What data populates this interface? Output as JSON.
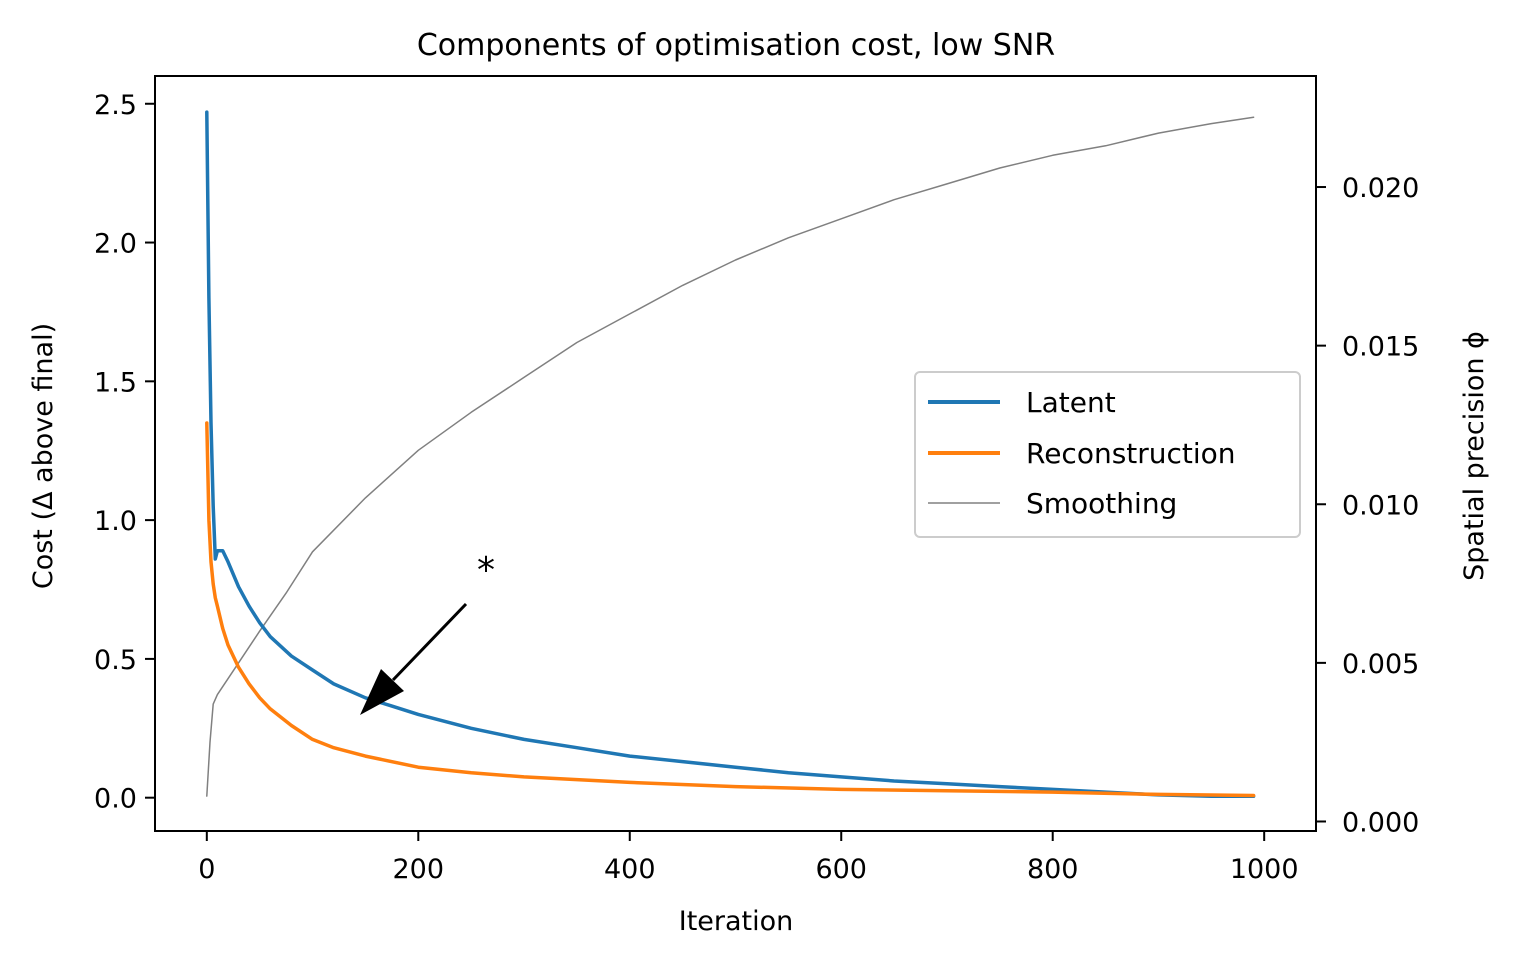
{
  "chart_data": {
    "type": "line",
    "title": "Components of optimisation cost, low SNR",
    "xlabel": "Iteration",
    "ylabel": "Cost (Δ above final)",
    "y2label": "Spatial precision ϕ",
    "xlim": [
      -49,
      1049
    ],
    "ylim": [
      -0.12,
      2.6
    ],
    "y2lim": [
      -0.0003,
      0.0235
    ],
    "xticks": [
      0,
      200,
      400,
      600,
      800,
      1000
    ],
    "xtick_labels": [
      "0",
      "200",
      "400",
      "600",
      "800",
      "1000"
    ],
    "yticks": [
      0.0,
      0.5,
      1.0,
      1.5,
      2.0,
      2.5
    ],
    "ytick_labels": [
      "0.0",
      "0.5",
      "1.0",
      "1.5",
      "2.0",
      "2.5"
    ],
    "y2ticks": [
      0.0,
      0.005,
      0.01,
      0.015,
      0.02
    ],
    "y2tick_labels": [
      "0.000",
      "0.005",
      "0.010",
      "0.015",
      "0.020"
    ],
    "grid": false,
    "legend_position": "center-right",
    "annotation": {
      "text": "*",
      "text_xy": [
        262,
        0.8
      ],
      "arrow_to": [
        143,
        0.3
      ]
    },
    "series": [
      {
        "name": "Latent",
        "axis": "left",
        "color": "#1f77b4",
        "x": [
          0,
          2,
          4,
          6,
          8,
          10,
          15,
          20,
          30,
          40,
          50,
          60,
          80,
          100,
          120,
          150,
          175,
          200,
          250,
          300,
          350,
          400,
          450,
          500,
          550,
          600,
          650,
          700,
          750,
          800,
          850,
          900,
          950,
          990
        ],
        "y": [
          2.47,
          1.8,
          1.35,
          1.05,
          0.86,
          0.89,
          0.89,
          0.85,
          0.76,
          0.69,
          0.63,
          0.58,
          0.51,
          0.46,
          0.41,
          0.36,
          0.33,
          0.3,
          0.25,
          0.21,
          0.18,
          0.15,
          0.13,
          0.11,
          0.09,
          0.075,
          0.06,
          0.05,
          0.04,
          0.03,
          0.02,
          0.01,
          0.005,
          0.005
        ]
      },
      {
        "name": "Reconstruction",
        "axis": "left",
        "color": "#ff7f0e",
        "x": [
          0,
          2,
          4,
          6,
          8,
          10,
          15,
          20,
          30,
          40,
          50,
          60,
          80,
          100,
          120,
          150,
          200,
          250,
          300,
          400,
          500,
          600,
          700,
          800,
          900,
          990
        ],
        "y": [
          1.35,
          1.0,
          0.85,
          0.77,
          0.72,
          0.69,
          0.61,
          0.55,
          0.47,
          0.41,
          0.36,
          0.32,
          0.26,
          0.21,
          0.18,
          0.15,
          0.11,
          0.09,
          0.075,
          0.055,
          0.04,
          0.03,
          0.025,
          0.02,
          0.012,
          0.008
        ]
      },
      {
        "name": "Smoothing",
        "axis": "right",
        "color": "#808080",
        "x": [
          0,
          3,
          6,
          10,
          20,
          30,
          50,
          75,
          100,
          150,
          200,
          250,
          300,
          350,
          400,
          450,
          500,
          550,
          600,
          650,
          700,
          750,
          800,
          850,
          900,
          950,
          990
        ],
        "y": [
          0.0008,
          0.0025,
          0.0037,
          0.004,
          0.0045,
          0.005,
          0.006,
          0.0072,
          0.0085,
          0.0102,
          0.0117,
          0.0129,
          0.014,
          0.0151,
          0.016,
          0.0169,
          0.0177,
          0.0184,
          0.019,
          0.0196,
          0.0201,
          0.0206,
          0.021,
          0.0213,
          0.0217,
          0.022,
          0.0222
        ]
      }
    ]
  }
}
